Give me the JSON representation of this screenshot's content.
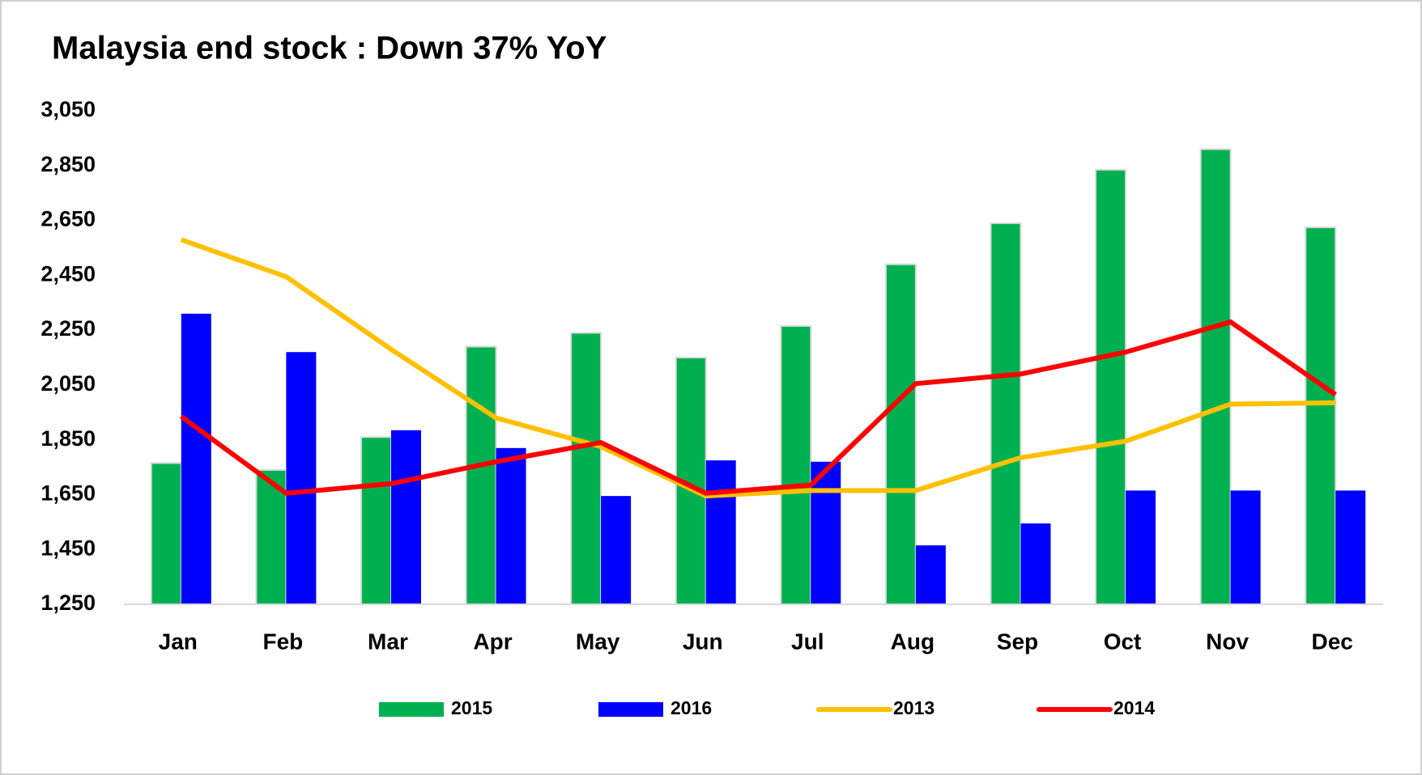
{
  "chart_data": {
    "type": "bar",
    "title": "Malaysia end stock : Down 37% YoY",
    "categories": [
      "Jan",
      "Feb",
      "Mar",
      "Apr",
      "May",
      "Jun",
      "Jul",
      "Aug",
      "Sep",
      "Oct",
      "Nov",
      "Dec"
    ],
    "series": [
      {
        "name": "2015",
        "type": "bar",
        "color": "#00b050",
        "values": [
          1765,
          1740,
          1860,
          2190,
          2240,
          2150,
          2265,
          2490,
          2640,
          2835,
          2910,
          2625
        ]
      },
      {
        "name": "2016",
        "type": "bar",
        "color": "#0000ff",
        "values": [
          2310,
          2170,
          1885,
          1820,
          1645,
          1775,
          1770,
          1465,
          1545,
          1665,
          1665,
          1665
        ]
      },
      {
        "name": "2013",
        "type": "line",
        "color": "#ffc000",
        "values": [
          2580,
          2445,
          2180,
          1930,
          1825,
          1645,
          1665,
          1665,
          1785,
          1845,
          1980,
          1985
        ]
      },
      {
        "name": "2014",
        "type": "line",
        "color": "#ff0000",
        "values": [
          1935,
          1655,
          1690,
          1770,
          1840,
          1655,
          1685,
          2055,
          2090,
          2170,
          2280,
          2015
        ]
      }
    ],
    "ylim": [
      1250,
      3050
    ],
    "yticks": [
      {
        "value": 1250,
        "label": "1,250"
      },
      {
        "value": 1450,
        "label": "1,450"
      },
      {
        "value": 1650,
        "label": "1,650"
      },
      {
        "value": 1850,
        "label": "1,850"
      },
      {
        "value": 2050,
        "label": "2,050"
      },
      {
        "value": 2250,
        "label": "2,250"
      },
      {
        "value": 2450,
        "label": "2,450"
      },
      {
        "value": 2650,
        "label": "2,650"
      },
      {
        "value": 2850,
        "label": "2,850"
      },
      {
        "value": 3050,
        "label": "3,050"
      }
    ],
    "grid": false,
    "legend": "bottom"
  }
}
